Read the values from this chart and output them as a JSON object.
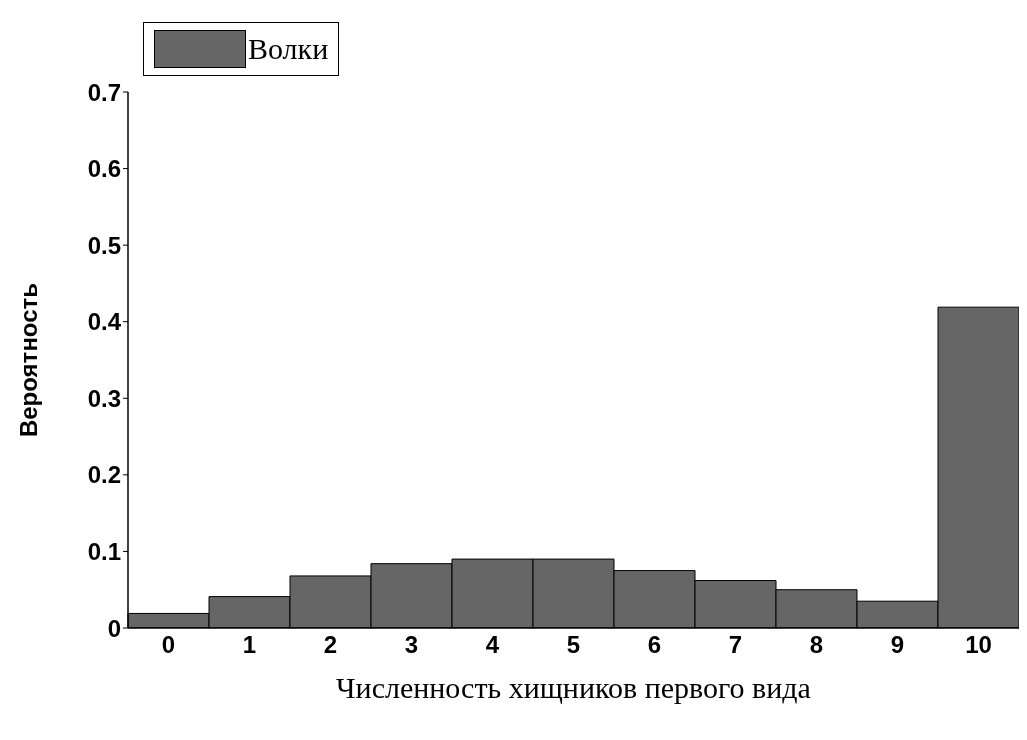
{
  "chart_data": {
    "type": "bar",
    "xlabel": "Численность хищников первого вида",
    "ylabel": "Вероятность",
    "categories": [
      "0",
      "1",
      "2",
      "3",
      "4",
      "5",
      "6",
      "7",
      "8",
      "9",
      "10"
    ],
    "series": [
      {
        "name": "Волки",
        "color": "#666666",
        "values": [
          0.019,
          0.041,
          0.068,
          0.084,
          0.09,
          0.09,
          0.075,
          0.062,
          0.05,
          0.035,
          0.419
        ]
      }
    ],
    "ylim": [
      0,
      0.7
    ],
    "yticks": [
      0,
      0.1,
      0.2,
      0.3,
      0.4,
      0.5,
      0.6,
      0.7
    ],
    "grid": false,
    "legend": "top left"
  }
}
